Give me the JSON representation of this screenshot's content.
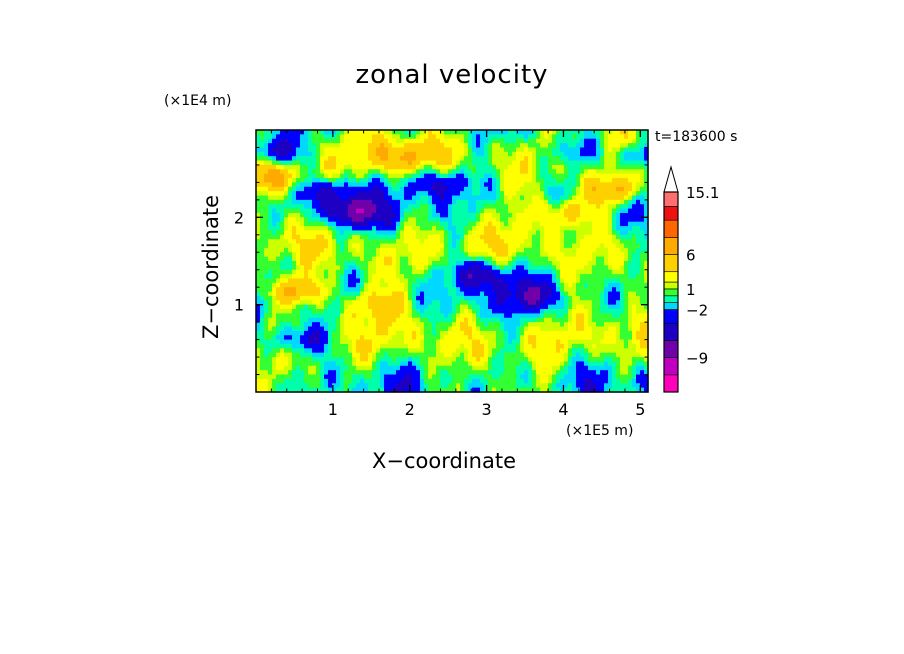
{
  "chart_data": {
    "type": "heatmap",
    "title": "zonal velocity",
    "xlabel": "X−coordinate",
    "ylabel": "Z−coordinate",
    "x_unit": "(×1E5 m)",
    "y_unit": "(×1E4 m)",
    "time_label": "t=183600 s",
    "xlim": [
      0,
      5.1
    ],
    "ylim": [
      0,
      3.0
    ],
    "x_ticks": [
      1,
      2,
      3,
      4,
      5
    ],
    "y_ticks": [
      1,
      2
    ],
    "colorbar": {
      "levels": [
        -14,
        -11.5,
        -9,
        -6.5,
        -4,
        -2,
        -1,
        0,
        1,
        2,
        3.5,
        6,
        8.5,
        11,
        13,
        15.1
      ],
      "colors": [
        "#ff00bb",
        "#c000c0",
        "#7000a8",
        "#1e00c4",
        "#0000ff",
        "#00d8ff",
        "#00ffaa",
        "#33ff33",
        "#ccff00",
        "#ffff00",
        "#ffd000",
        "#ffaa00",
        "#ff6600",
        "#ee1111",
        "#ff6f6f",
        "#ffb8b8"
      ],
      "tick_labels": [
        "15.1",
        "6",
        "1",
        "−2",
        "−9"
      ],
      "tick_values": [
        15.1,
        6,
        1,
        -2,
        -9
      ],
      "extend": "max"
    },
    "features": [
      {
        "x": 1.25,
        "z": 2.05,
        "u": -7
      },
      {
        "x": 0.95,
        "z": 2.3,
        "u": -5
      },
      {
        "x": 2.4,
        "z": 2.4,
        "u": -5
      },
      {
        "x": 0.2,
        "z": 2.75,
        "u": -6
      },
      {
        "x": 5.0,
        "z": 2.7,
        "u": -6
      },
      {
        "x": 4.15,
        "z": 2.75,
        "u": -4
      },
      {
        "x": 2.95,
        "z": 1.35,
        "u": -6
      },
      {
        "x": 3.6,
        "z": 1.1,
        "u": -4
      },
      {
        "x": 0.55,
        "z": 0.6,
        "u": -6
      },
      {
        "x": 0.5,
        "z": 1.15,
        "u": 8
      },
      {
        "x": 4.6,
        "z": 2.3,
        "u": 7
      },
      {
        "x": 4.05,
        "z": 2.05,
        "u": 6
      },
      {
        "x": 0.25,
        "z": 2.45,
        "u": 6
      },
      {
        "x": 1.5,
        "z": 1.0,
        "u": 4
      },
      {
        "x": 1.9,
        "z": 2.7,
        "u": 5
      }
    ]
  }
}
